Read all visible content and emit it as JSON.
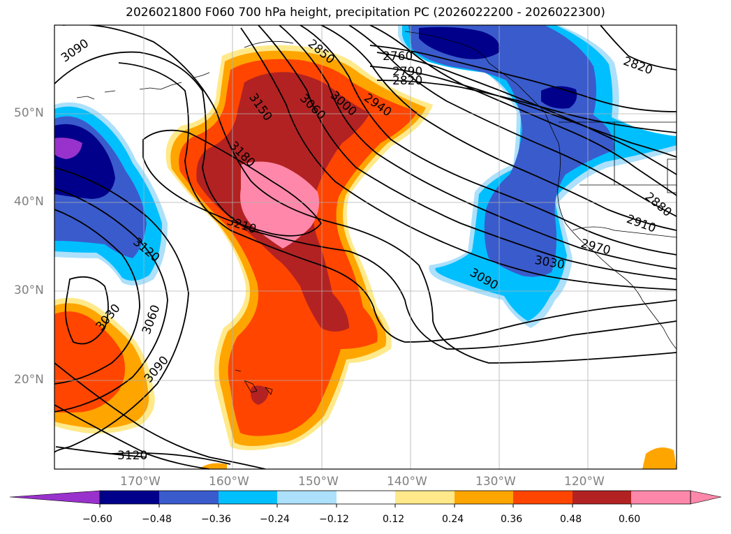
{
  "title": "2026021800 F060 700 hPa height, precipitation PC (2026022200 - 2026022300)",
  "latitude_labels": [
    "50°N",
    "40°N",
    "30°N",
    "20°N"
  ],
  "longitude_labels": [
    "170°W",
    "160°W",
    "150°W",
    "140°W",
    "130°W",
    "120°W"
  ],
  "contour_labels": [
    "3090",
    "2850",
    "2760",
    "2790",
    "2820",
    "2820",
    "3150",
    "3060",
    "3000",
    "2940",
    "3180",
    "3210",
    "3120",
    "3030",
    "3060",
    "3090",
    "3120",
    "2880",
    "2910",
    "2970",
    "3030",
    "3090"
  ],
  "colorbar": {
    "ticks": [
      "−0.60",
      "−0.48",
      "−0.36",
      "−0.24",
      "−0.12",
      "0.12",
      "0.24",
      "0.36",
      "0.48",
      "0.60"
    ],
    "colors": [
      "#9932CC",
      "#00008B",
      "#3A5BCC",
      "#00BFFF",
      "#ADE0FA",
      "#FFFFFF",
      "#FFE98A",
      "#FFA500",
      "#FF4500",
      "#B22222",
      "#FF88AA"
    ]
  },
  "legend_colors": {
    "strong_negative": "#00008B",
    "negative": "#3A5BCC",
    "weak_negative": "#00BFFF",
    "positive": "#FFA500",
    "strong_positive": "#FF4500",
    "very_strong_positive": "#B22222",
    "extreme_positive": "#FF88AA"
  }
}
